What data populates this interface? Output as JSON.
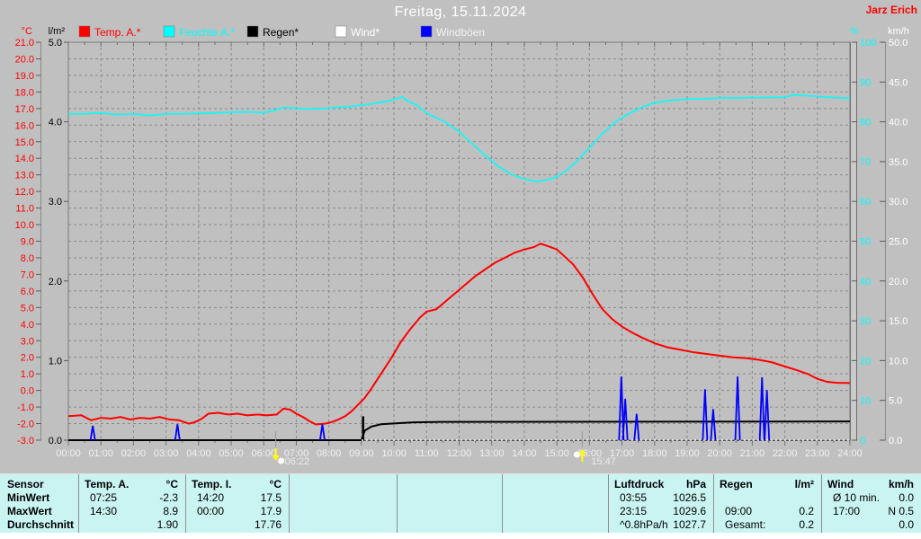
{
  "header": {
    "title": "Freitag, 15.11.2024",
    "station": "Jarz Erich"
  },
  "legend": [
    {
      "label": "Temp. A.*",
      "swatch": "#ff0000",
      "text_color": "#ff0000"
    },
    {
      "label": "Feuchte A.*",
      "swatch": "#00ffff",
      "text_color": "#00ffff"
    },
    {
      "label": "Regen*",
      "swatch": "#000000",
      "text_color": "#000000"
    },
    {
      "label": "Wind*",
      "swatch": "#ffffff",
      "text_color": "#ffffff"
    },
    {
      "label": "Windböen",
      "swatch": "#0000ff",
      "text_color": "#f2f2f2"
    }
  ],
  "x_axis": {
    "labels": [
      "00:00",
      "01:00",
      "02:00",
      "03:00",
      "04:00",
      "05:00",
      "06:00",
      "07:00",
      "08:00",
      "09:00",
      "10:00",
      "11:00",
      "12:00",
      "13:00",
      "14:00",
      "15:00",
      "16:00",
      "17:00",
      "18:00",
      "19:00",
      "20:00",
      "21:00",
      "22:00",
      "23:00",
      "24:00"
    ]
  },
  "markers": {
    "sunrise": {
      "label": "06:22",
      "hour": 6.37
    },
    "sunset": {
      "label": "15:47",
      "hour": 15.78
    }
  },
  "chart_data": {
    "type": "line",
    "title": "Freitag, 15.11.2024",
    "x_unit": "hour of day",
    "x_range": [
      0,
      24
    ],
    "grid": true,
    "axes": {
      "temp": {
        "unit": "°C",
        "color": "#ff0000",
        "min": -3,
        "max": 21,
        "step": 1,
        "decimals": 1
      },
      "rain": {
        "unit": "l/m²",
        "color": "#000000",
        "min": 0,
        "max": 5,
        "step": 1,
        "decimals": 1
      },
      "humidity": {
        "unit": "%",
        "color": "#00ffff",
        "min": 0,
        "max": 100,
        "step": 10,
        "decimals": 0
      },
      "wind": {
        "unit": "km/h",
        "color": "#ffffff",
        "min": 0,
        "max": 50,
        "step": 5,
        "decimals": 1
      }
    },
    "series": [
      {
        "name": "Feuchte A.*",
        "axis": "humidity",
        "color": "#00ffff",
        "width": 1.6,
        "points": [
          [
            0,
            82
          ],
          [
            0.5,
            82
          ],
          [
            1,
            82.2
          ],
          [
            1.5,
            81.8
          ],
          [
            2,
            82
          ],
          [
            2.5,
            81.6
          ],
          [
            3,
            82
          ],
          [
            3.5,
            82
          ],
          [
            4,
            82.1
          ],
          [
            4.5,
            82.2
          ],
          [
            5,
            82.4
          ],
          [
            5.5,
            82.5
          ],
          [
            6,
            82.3
          ],
          [
            6.3,
            82.8
          ],
          [
            6.6,
            83.6
          ],
          [
            7,
            83.4
          ],
          [
            7.4,
            83.2
          ],
          [
            7.8,
            83.3
          ],
          [
            8.2,
            83.6
          ],
          [
            8.6,
            83.8
          ],
          [
            9,
            84.2
          ],
          [
            9.4,
            84.6
          ],
          [
            9.8,
            85.2
          ],
          [
            10.1,
            85.8
          ],
          [
            10.25,
            86.3
          ],
          [
            10.4,
            85.3
          ],
          [
            10.7,
            84.2
          ],
          [
            11,
            82.2
          ],
          [
            11.3,
            81
          ],
          [
            11.6,
            79.8
          ],
          [
            12,
            77.5
          ],
          [
            12.4,
            74.5
          ],
          [
            12.8,
            71.5
          ],
          [
            13.2,
            68.8
          ],
          [
            13.6,
            66.8
          ],
          [
            14,
            65.6
          ],
          [
            14.4,
            65
          ],
          [
            14.7,
            65.4
          ],
          [
            15,
            66.2
          ],
          [
            15.3,
            67.8
          ],
          [
            15.6,
            70
          ],
          [
            16,
            73.5
          ],
          [
            16.4,
            77
          ],
          [
            16.8,
            80
          ],
          [
            17.2,
            82
          ],
          [
            17.6,
            83.6
          ],
          [
            18,
            84.8
          ],
          [
            18.5,
            85.4
          ],
          [
            19,
            85.7
          ],
          [
            19.5,
            85.8
          ],
          [
            20,
            86
          ],
          [
            20.5,
            86
          ],
          [
            21,
            86.1
          ],
          [
            21.5,
            86.1
          ],
          [
            22,
            86.2
          ],
          [
            22.3,
            86.8
          ],
          [
            22.6,
            86.6
          ],
          [
            23,
            86.4
          ],
          [
            23.5,
            86.1
          ],
          [
            24,
            85.9
          ]
        ]
      },
      {
        "name": "Temp. A.*",
        "axis": "temp",
        "color": "#ff0000",
        "width": 2,
        "points": [
          [
            0,
            -1.55
          ],
          [
            0.4,
            -1.5
          ],
          [
            0.7,
            -1.8
          ],
          [
            1,
            -1.65
          ],
          [
            1.3,
            -1.7
          ],
          [
            1.6,
            -1.6
          ],
          [
            1.9,
            -1.75
          ],
          [
            2.2,
            -1.65
          ],
          [
            2.5,
            -1.7
          ],
          [
            2.8,
            -1.6
          ],
          [
            3.1,
            -1.75
          ],
          [
            3.4,
            -1.8
          ],
          [
            3.7,
            -2.0
          ],
          [
            3.9,
            -1.9
          ],
          [
            4.1,
            -1.7
          ],
          [
            4.3,
            -1.4
          ],
          [
            4.6,
            -1.35
          ],
          [
            4.9,
            -1.45
          ],
          [
            5.2,
            -1.4
          ],
          [
            5.5,
            -1.5
          ],
          [
            5.8,
            -1.45
          ],
          [
            6.1,
            -1.5
          ],
          [
            6.4,
            -1.45
          ],
          [
            6.6,
            -1.1
          ],
          [
            6.8,
            -1.15
          ],
          [
            7,
            -1.4
          ],
          [
            7.2,
            -1.6
          ],
          [
            7.4,
            -1.85
          ],
          [
            7.6,
            -2.05
          ],
          [
            7.9,
            -2.0
          ],
          [
            8.1,
            -1.9
          ],
          [
            8.3,
            -1.75
          ],
          [
            8.5,
            -1.55
          ],
          [
            8.7,
            -1.25
          ],
          [
            8.9,
            -0.85
          ],
          [
            9.1,
            -0.45
          ],
          [
            9.3,
            0.1
          ],
          [
            9.6,
            1.0
          ],
          [
            9.9,
            1.9
          ],
          [
            10.2,
            2.9
          ],
          [
            10.5,
            3.7
          ],
          [
            10.8,
            4.4
          ],
          [
            11,
            4.75
          ],
          [
            11.3,
            4.9
          ],
          [
            11.6,
            5.4
          ],
          [
            11.9,
            5.9
          ],
          [
            12.2,
            6.4
          ],
          [
            12.5,
            6.9
          ],
          [
            12.8,
            7.3
          ],
          [
            13.1,
            7.7
          ],
          [
            13.4,
            8.0
          ],
          [
            13.7,
            8.3
          ],
          [
            14,
            8.5
          ],
          [
            14.3,
            8.65
          ],
          [
            14.5,
            8.85
          ],
          [
            14.8,
            8.65
          ],
          [
            15,
            8.5
          ],
          [
            15.2,
            8.15
          ],
          [
            15.5,
            7.6
          ],
          [
            15.8,
            6.8
          ],
          [
            16.1,
            5.8
          ],
          [
            16.4,
            4.9
          ],
          [
            16.7,
            4.3
          ],
          [
            17,
            3.85
          ],
          [
            17.3,
            3.5
          ],
          [
            17.6,
            3.2
          ],
          [
            18,
            2.85
          ],
          [
            18.4,
            2.6
          ],
          [
            18.8,
            2.45
          ],
          [
            19.2,
            2.3
          ],
          [
            19.6,
            2.2
          ],
          [
            20,
            2.1
          ],
          [
            20.4,
            2.0
          ],
          [
            20.8,
            1.95
          ],
          [
            21.2,
            1.85
          ],
          [
            21.6,
            1.7
          ],
          [
            22,
            1.45
          ],
          [
            22.4,
            1.2
          ],
          [
            22.7,
            1.0
          ],
          [
            23,
            0.7
          ],
          [
            23.3,
            0.52
          ],
          [
            23.6,
            0.46
          ],
          [
            24,
            0.45
          ]
        ]
      },
      {
        "name": "Regen*",
        "axis": "rain",
        "color": "#000000",
        "width": 2,
        "points": [
          [
            0,
            0
          ],
          [
            9,
            0
          ],
          [
            9.1,
            0.12
          ],
          [
            9.3,
            0.17
          ],
          [
            9.6,
            0.2
          ],
          [
            10,
            0.21
          ],
          [
            10.6,
            0.225
          ],
          [
            11.5,
            0.23
          ],
          [
            24,
            0.235
          ]
        ],
        "event_bar": {
          "hour": 9.05,
          "value": 0.3
        }
      },
      {
        "name": "Wind*",
        "axis": "wind",
        "color": "#ffffff",
        "width": 1.5,
        "dash": "2 3",
        "points": [
          [
            9,
            0
          ],
          [
            24,
            0
          ]
        ]
      },
      {
        "name": "Windböen",
        "axis": "wind",
        "color": "#0000ff",
        "width": 1.8,
        "spikes": [
          [
            0.75,
            1.8
          ],
          [
            3.35,
            2.0
          ],
          [
            7.8,
            2.0
          ],
          [
            16.98,
            8.0
          ],
          [
            17.1,
            5.2
          ],
          [
            17.45,
            3.3
          ],
          [
            19.55,
            6.4
          ],
          [
            19.8,
            3.9
          ],
          [
            20.55,
            8.0
          ],
          [
            21.3,
            7.9
          ],
          [
            21.45,
            6.3
          ]
        ]
      }
    ]
  },
  "table": {
    "row_labels": [
      "Sensor",
      "MinWert",
      "MaxWert",
      "Durchschnitt"
    ],
    "columns": [
      {
        "name": "Temp. A.",
        "unit": "°C",
        "rows": [
          [
            "07:25",
            "-2.3"
          ],
          [
            "14:30",
            "8.9"
          ],
          [
            "",
            "1.90"
          ]
        ]
      },
      {
        "name": "Temp. I.",
        "unit": "°C",
        "rows": [
          [
            "14:20",
            "17.5"
          ],
          [
            "00:00",
            "17.9"
          ],
          [
            "",
            "17.76"
          ]
        ]
      },
      {
        "name": "",
        "unit": "",
        "rows": [
          [
            "",
            ""
          ],
          [
            "",
            ""
          ],
          [
            "",
            ""
          ]
        ]
      },
      {
        "name": "",
        "unit": "",
        "rows": [
          [
            "",
            ""
          ],
          [
            "",
            ""
          ],
          [
            "",
            ""
          ]
        ]
      },
      {
        "name": "",
        "unit": "",
        "rows": [
          [
            "",
            ""
          ],
          [
            "",
            ""
          ],
          [
            "",
            ""
          ]
        ]
      },
      {
        "name": "Luftdruck",
        "unit": "hPa",
        "rows": [
          [
            "03:55",
            "1026.5"
          ],
          [
            "23:15",
            "1029.6"
          ],
          [
            "^0.8hPa/h",
            "1027.7"
          ]
        ]
      },
      {
        "name": "Regen",
        "unit": "l/m²",
        "rows": [
          [
            "",
            ""
          ],
          [
            "09:00",
            "0.2"
          ],
          [
            "Gesamt:",
            "0.2"
          ]
        ]
      },
      {
        "name": "Wind",
        "unit": "km/h",
        "rows": [
          [
            "Ø 10 min.",
            "0.0"
          ],
          [
            "17:00",
            "N 0.5"
          ],
          [
            "",
            "0.0"
          ]
        ]
      }
    ]
  }
}
